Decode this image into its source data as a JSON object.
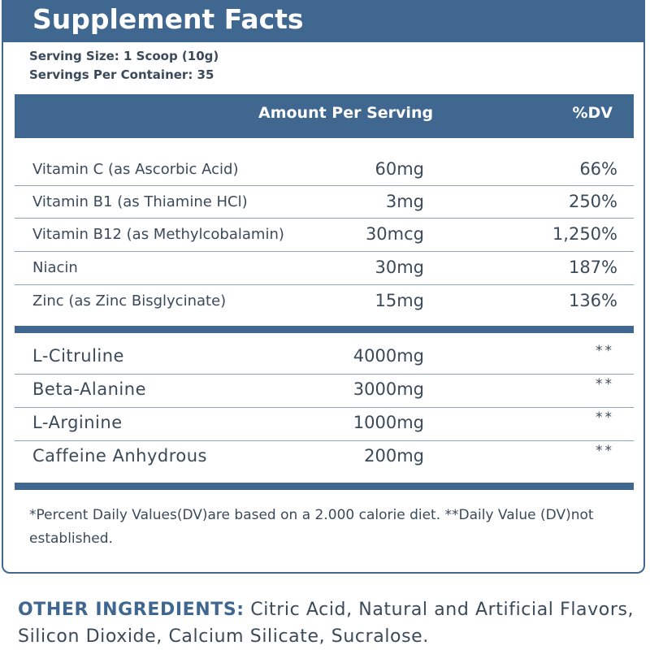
{
  "panel": {
    "title": "Supplement Facts",
    "serving_size": "Serving Size: 1 Scoop (10g)",
    "servings_per_container": "Servings Per Container: 35",
    "header_amount": "Amount Per Serving",
    "header_dv": "%DV"
  },
  "vitamins": [
    {
      "name": "Vitamin C (as Ascorbic Acid)",
      "amount": "60mg",
      "dv": "66%"
    },
    {
      "name": "Vitamin B1 (as Thiamine HCl)",
      "amount": "3mg",
      "dv": "250%"
    },
    {
      "name": "Vitamin B12 (as Methylcobalamin)",
      "amount": "30mcg",
      "dv": "1,250%"
    },
    {
      "name": "Niacin",
      "amount": "30mg",
      "dv": "187%"
    },
    {
      "name": "Zinc (as Zinc Bisglycinate)",
      "amount": "15mg",
      "dv": "136%"
    }
  ],
  "ingredients": [
    {
      "name": "L-Citruline",
      "amount": "4000mg",
      "dv": "**"
    },
    {
      "name": "Beta-Alanine",
      "amount": "3000mg",
      "dv": "**"
    },
    {
      "name": "L-Arginine",
      "amount": "1000mg",
      "dv": "**"
    },
    {
      "name": "Caffeine Anhydrous",
      "amount": "200mg",
      "dv": "**"
    }
  ],
  "footnote": "*Percent Daily Values(DV)are based on a 2.000 calorie diet. **Daily Value (DV)not established.",
  "other_ingredients": {
    "label": "OTHER INGREDIENTS:",
    "text": " Citric Acid, Natural and Artificial Flavors, Silicon Dioxide, Calcium Silicate, Sucralose."
  },
  "colors": {
    "brand": "#3f6790",
    "text": "#3b4a5a",
    "rule": "#8ea3b8"
  }
}
